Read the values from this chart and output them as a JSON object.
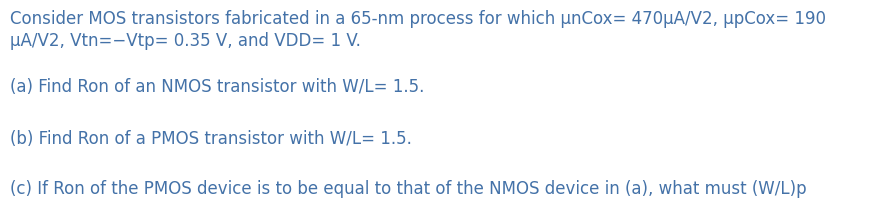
{
  "background_color": "#ffffff",
  "text_color": "#4472a8",
  "font_size": 12.0,
  "line1": "Consider MOS transistors fabricated in a 65-nm process for which μnCox= 470μA/V2, μpCox= 190",
  "line2": "μA/V2, Vtn=−Vtp= 0.35 V, and VDD= 1 V.",
  "line3": "(a) Find Ron of an NMOS transistor with W/L= 1.5.",
  "line4": "(b) Find Ron of a PMOS transistor with W/L= 1.5.",
  "line5": "(c) If Ron of the PMOS device is to be equal to that of the NMOS device in (a), what must (W/L)p"
}
